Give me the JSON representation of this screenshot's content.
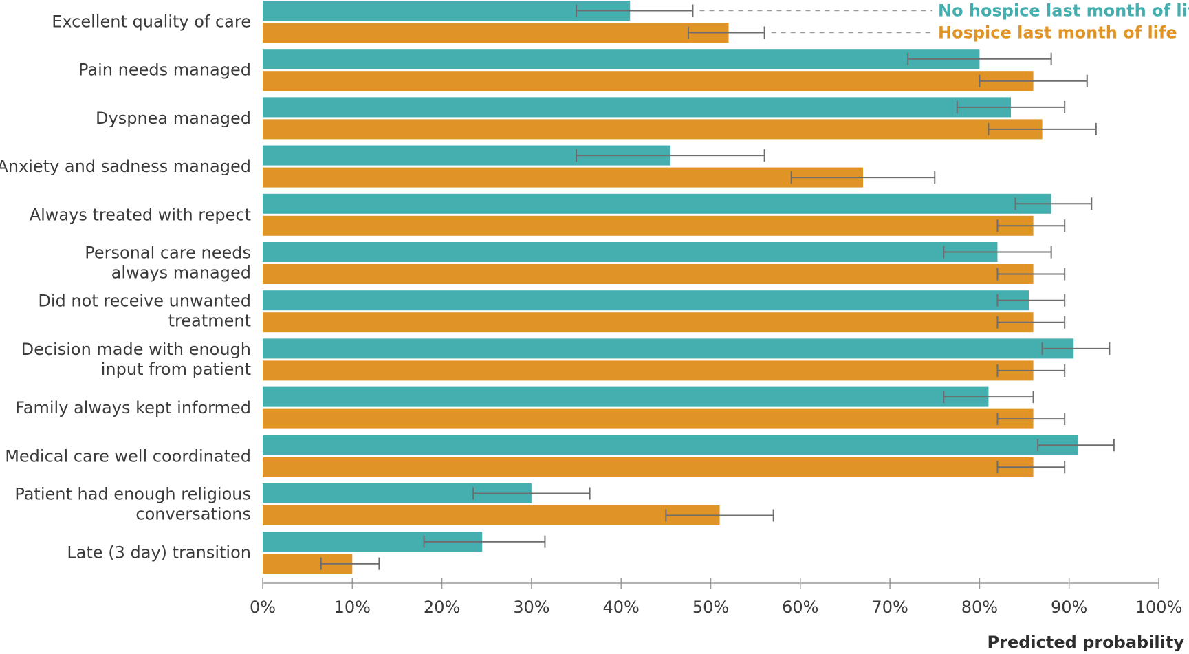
{
  "chart_data": {
    "type": "bar",
    "orientation": "horizontal",
    "categories": [
      [
        "Excellent quality of care"
      ],
      [
        "Pain needs managed"
      ],
      [
        "Dyspnea managed"
      ],
      [
        "Anxiety and sadness managed"
      ],
      [
        "Always treated with repect"
      ],
      [
        "Personal care needs",
        "always managed"
      ],
      [
        "Did not receive unwanted",
        "treatment"
      ],
      [
        "Decision made with enough",
        "input from patient"
      ],
      [
        "Family always kept informed"
      ],
      [
        "Medical care well coordinated"
      ],
      [
        "Patient had enough religious",
        "conversations"
      ],
      [
        "Late (3 day) transition"
      ]
    ],
    "series": [
      {
        "name": "No hospice last month of life",
        "color": "#45aeae",
        "values": [
          41,
          80,
          83.5,
          45.5,
          88,
          82,
          85.5,
          90.5,
          81,
          91,
          30,
          24.5
        ],
        "ci_low": [
          35,
          72,
          77.5,
          35,
          84,
          76,
          82,
          87,
          76,
          86.5,
          23.5,
          18
        ],
        "ci_high": [
          48,
          88,
          89.5,
          56,
          92.5,
          88,
          89.5,
          94.5,
          86,
          95,
          36.5,
          31.5
        ]
      },
      {
        "name": "Hospice last month of life",
        "color": "#e09426",
        "values": [
          52,
          86,
          87,
          67,
          86,
          86,
          86,
          86,
          86,
          86,
          51,
          10
        ],
        "ci_low": [
          47.5,
          80,
          81,
          59,
          82,
          82,
          82,
          82,
          82,
          82,
          45,
          6.5
        ],
        "ci_high": [
          56,
          92,
          93,
          75,
          89.5,
          89.5,
          89.5,
          89.5,
          89.5,
          89.5,
          57,
          13
        ]
      }
    ],
    "x_ticks": [
      "0%",
      "10%",
      "20%",
      "30%",
      "40%",
      "50%",
      "60%",
      "70%",
      "80%",
      "90%",
      "100%"
    ],
    "xlim": [
      0,
      100
    ],
    "xlabel": "Predicted probability",
    "legend_position": "top-right",
    "error_bar_color": "#6d6d6d",
    "axis_color": "#9a9a9a",
    "text_color": "#3a3a3a"
  }
}
